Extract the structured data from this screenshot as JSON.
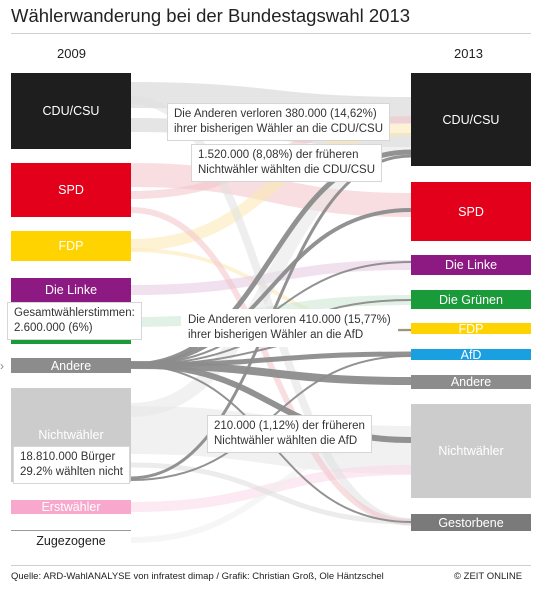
{
  "title": "Wählerwanderung bei der Bundestagswahl 2013",
  "years": {
    "left": "2009",
    "right": "2013"
  },
  "left_blocks": [
    {
      "id": "cdu",
      "label": "CDU/CSU",
      "color": "#1e1e1e"
    },
    {
      "id": "spd",
      "label": "SPD",
      "color": "#e3001b"
    },
    {
      "id": "fdp",
      "label": "FDP",
      "color": "#ffd300"
    },
    {
      "id": "linke",
      "label": "Die Linke",
      "color": "#8d1a82"
    },
    {
      "id": "gruene",
      "label": "",
      "color": "#1a9b3a"
    },
    {
      "id": "andere",
      "label": "Andere",
      "color": "#8c8c8c"
    },
    {
      "id": "nichtwaehler",
      "label": "Nichtwähler",
      "color": "#cccccc"
    },
    {
      "id": "erstwaehler",
      "label": "Erstwähler",
      "color": "#f7a8cc"
    },
    {
      "id": "zugezogene",
      "label": "Zugezogene",
      "color": "#ffffff"
    }
  ],
  "right_blocks": [
    {
      "id": "cdu",
      "label": "CDU/CSU",
      "color": "#1e1e1e"
    },
    {
      "id": "spd",
      "label": "SPD",
      "color": "#e3001b"
    },
    {
      "id": "linke",
      "label": "Die Linke",
      "color": "#8d1a82"
    },
    {
      "id": "gruene",
      "label": "Die Grünen",
      "color": "#1a9b3a"
    },
    {
      "id": "fdp",
      "label": "FDP",
      "color": "#ffd300"
    },
    {
      "id": "afd",
      "label": "AfD",
      "color": "#1a9fe0"
    },
    {
      "id": "andere",
      "label": "Andere",
      "color": "#8c8c8c"
    },
    {
      "id": "nichtwaehler",
      "label": "Nichtwähler",
      "color": "#cccccc"
    },
    {
      "id": "gestorbene",
      "label": "Gestorbene",
      "color": "#7a7a7a"
    }
  ],
  "callouts": {
    "andere_cdu": [
      "Die Anderen verloren 380.000 (14,62%)",
      "ihrer bisherigen Wähler an die CDU/CSU"
    ],
    "nichtwaehler_cdu": [
      "1.520.000 (8,08%) der früheren",
      "Nichtwähler wählten die CDU/CSU"
    ],
    "gesamt": [
      "Gesamtwählerstimmen:",
      "2.600.000 (6%)"
    ],
    "andere_afd": [
      "Die Anderen verloren 410.000 (15,77%)",
      "ihrer bisherigen Wähler an die AfD"
    ],
    "nichtwaehler_afd": [
      "210.000 (1,12%) der früheren",
      "Nichtwähler wählten die AfD"
    ],
    "buerger": [
      "18.810.000 Bürger",
      "29.2% wählten nicht"
    ]
  },
  "footer": {
    "source": "Quelle: ARD-WahlANALYSE von infratest dimap / Grafik: Christian Groß, Ole Häntzschel",
    "copyright": "© ZEIT ONLINE"
  },
  "colors": {
    "flow_highlight": "#8c8c8c",
    "flow_faint": "#ececec"
  }
}
